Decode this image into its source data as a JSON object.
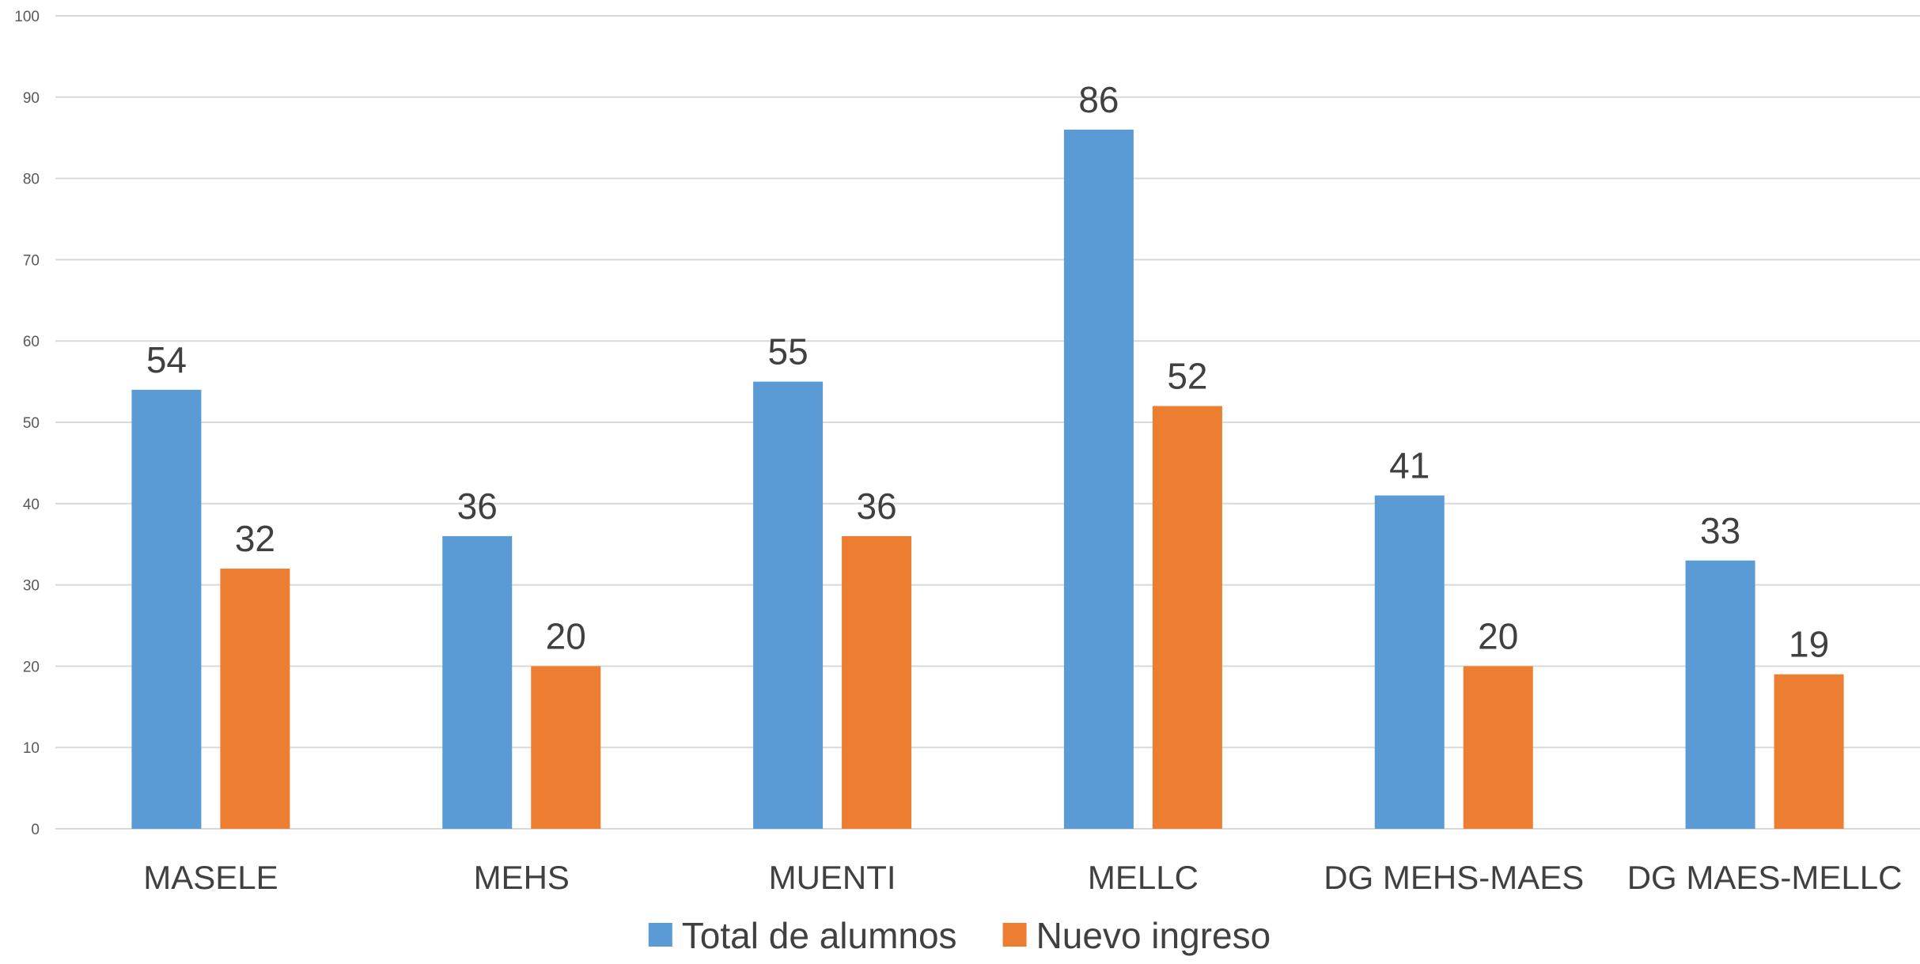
{
  "chart_data": {
    "type": "bar",
    "categories": [
      "MASELE",
      "MEHS",
      "MUENTI",
      "MELLC",
      "DG MEHS-MAES",
      "DG MAES-MELLC"
    ],
    "series": [
      {
        "name": "Total de alumnos",
        "color": "#5b9bd5",
        "values": [
          54,
          36,
          55,
          86,
          41,
          33
        ]
      },
      {
        "name": "Nuevo ingreso",
        "color": "#ed7d31",
        "values": [
          32,
          20,
          36,
          52,
          20,
          19
        ]
      }
    ],
    "ylim": [
      0,
      100
    ],
    "yticks": [
      0,
      10,
      20,
      30,
      40,
      50,
      60,
      70,
      80,
      90,
      100
    ],
    "grid": true,
    "legend_position": "bottom",
    "data_labels": true,
    "title": "",
    "xlabel": "",
    "ylabel": ""
  }
}
